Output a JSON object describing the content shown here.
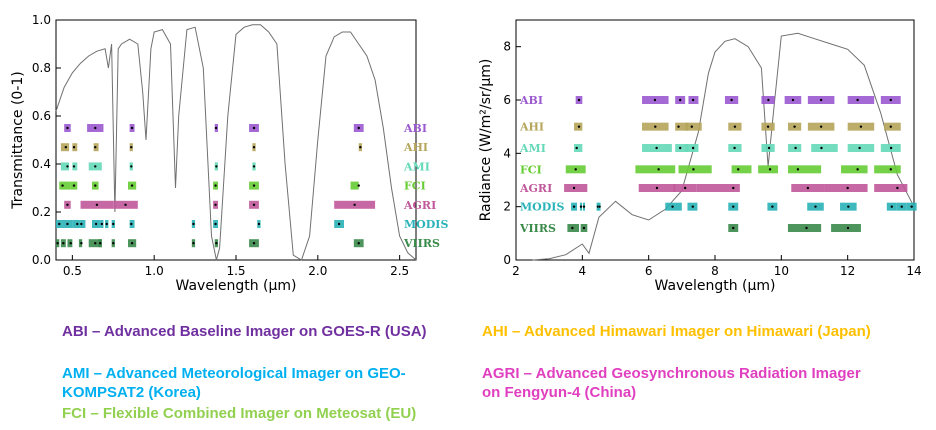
{
  "colors": {
    "ABI": "#9b59d0",
    "AHI": "#b5a55a",
    "AMI": "#66d9b8",
    "FCI": "#66cc33",
    "AGRI": "#c0589a",
    "MODIS": "#29b3b8",
    "VIIRS": "#3a8a4a",
    "curve": "#707070"
  },
  "chart_data": [
    {
      "type": "line",
      "xlabel": "Wavelength (μm)",
      "ylabel": "Transmittance (0-1)",
      "xlim": [
        0.4,
        2.6
      ],
      "ylim": [
        0.0,
        1.0
      ],
      "xticks": [
        "0.5",
        "1.0",
        "1.5",
        "2.0",
        "2.5"
      ],
      "yticks": [
        "0.0",
        "0.2",
        "0.4",
        "0.6",
        "0.8",
        "1.0"
      ],
      "grid": false,
      "curve": {
        "x": [
          0.4,
          0.45,
          0.5,
          0.55,
          0.6,
          0.65,
          0.7,
          0.72,
          0.74,
          0.76,
          0.78,
          0.8,
          0.85,
          0.9,
          0.93,
          0.95,
          0.98,
          1.0,
          1.05,
          1.1,
          1.13,
          1.15,
          1.2,
          1.25,
          1.3,
          1.35,
          1.38,
          1.4,
          1.45,
          1.5,
          1.55,
          1.6,
          1.65,
          1.7,
          1.75,
          1.8,
          1.85,
          1.9,
          1.95,
          2.0,
          2.05,
          2.1,
          2.15,
          2.2,
          2.25,
          2.3,
          2.35,
          2.4,
          2.45,
          2.5,
          2.55,
          2.6
        ],
        "y": [
          0.62,
          0.72,
          0.78,
          0.82,
          0.85,
          0.87,
          0.88,
          0.8,
          0.9,
          0.2,
          0.88,
          0.9,
          0.92,
          0.9,
          0.7,
          0.5,
          0.88,
          0.95,
          0.96,
          0.9,
          0.3,
          0.6,
          0.96,
          0.97,
          0.8,
          0.1,
          0.0,
          0.05,
          0.6,
          0.94,
          0.97,
          0.98,
          0.98,
          0.95,
          0.9,
          0.4,
          0.02,
          0.0,
          0.1,
          0.5,
          0.85,
          0.93,
          0.95,
          0.95,
          0.9,
          0.85,
          0.75,
          0.55,
          0.3,
          0.1,
          0.03,
          0.0
        ]
      },
      "instruments": [
        {
          "name": "ABI",
          "level": 0.55,
          "bands": [
            [
              0.45,
              0.49,
              0.47
            ],
            [
              0.59,
              0.69,
              0.64
            ],
            [
              0.85,
              0.88,
              0.865
            ],
            [
              1.37,
              1.39,
              1.378
            ],
            [
              1.58,
              1.64,
              1.61
            ],
            [
              2.22,
              2.28,
              2.25
            ]
          ]
        },
        {
          "name": "AHI",
          "level": 0.47,
          "bands": [
            [
              0.43,
              0.48,
              0.46
            ],
            [
              0.5,
              0.53,
              0.51
            ],
            [
              0.63,
              0.66,
              0.64
            ],
            [
              0.85,
              0.87,
              0.86
            ],
            [
              1.6,
              1.62,
              1.61
            ],
            [
              2.25,
              2.27,
              2.26
            ]
          ]
        },
        {
          "name": "AMI",
          "level": 0.39,
          "bands": [
            [
              0.43,
              0.48,
              0.47
            ],
            [
              0.5,
              0.53,
              0.51
            ],
            [
              0.6,
              0.68,
              0.64
            ],
            [
              0.85,
              0.87,
              0.86
            ],
            [
              1.37,
              1.39,
              1.38
            ],
            [
              1.6,
              1.62,
              1.61
            ]
          ]
        },
        {
          "name": "FCI",
          "level": 0.31,
          "bands": [
            [
              0.42,
              0.49,
              0.44
            ],
            [
              0.49,
              0.53,
              0.51
            ],
            [
              0.62,
              0.66,
              0.64
            ],
            [
              0.84,
              0.89,
              0.865
            ],
            [
              1.36,
              1.39,
              1.375
            ],
            [
              1.58,
              1.64,
              1.61
            ],
            [
              2.2,
              2.25,
              2.25
            ]
          ]
        },
        {
          "name": "AGRI",
          "level": 0.23,
          "bands": [
            [
              0.45,
              0.49,
              0.47
            ],
            [
              0.55,
              0.75,
              0.65
            ],
            [
              0.75,
              0.9,
              0.825
            ],
            [
              1.36,
              1.39,
              1.375
            ],
            [
              1.58,
              1.64,
              1.61
            ],
            [
              2.1,
              2.35,
              2.225
            ]
          ]
        },
        {
          "name": "MODIS",
          "level": 0.15,
          "bands": [
            [
              0.4,
              0.44,
              0.42
            ],
            [
              0.44,
              0.5,
              0.47
            ],
            [
              0.5,
              0.55,
              0.53
            ],
            [
              0.55,
              0.58,
              0.555
            ],
            [
              0.62,
              0.67,
              0.645
            ],
            [
              0.67,
              0.69,
              0.68
            ],
            [
              0.7,
              0.72,
              0.71
            ],
            [
              0.74,
              0.76,
              0.75
            ],
            [
              0.85,
              0.88,
              0.86
            ],
            [
              1.23,
              1.25,
              1.24
            ],
            [
              1.36,
              1.39,
              1.375
            ],
            [
              1.63,
              1.65,
              1.64
            ],
            [
              2.1,
              2.16,
              2.13
            ]
          ]
        },
        {
          "name": "VIIRS",
          "level": 0.07,
          "bands": [
            [
              0.4,
              0.42,
              0.41
            ],
            [
              0.43,
              0.46,
              0.445
            ],
            [
              0.47,
              0.5,
              0.49
            ],
            [
              0.54,
              0.56,
              0.555
            ],
            [
              0.6,
              0.68,
              0.64
            ],
            [
              0.66,
              0.68,
              0.67
            ],
            [
              0.74,
              0.76,
              0.75
            ],
            [
              0.84,
              0.89,
              0.865
            ],
            [
              1.23,
              1.25,
              1.24
            ],
            [
              1.37,
              1.39,
              1.38
            ],
            [
              1.58,
              1.64,
              1.61
            ],
            [
              2.22,
              2.28,
              2.25
            ]
          ]
        }
      ]
    },
    {
      "type": "line",
      "xlabel": "Wavelength (μm)",
      "ylabel": "Radiance (W/m²/sr/μm)",
      "xlim": [
        2,
        14
      ],
      "ylim": [
        0,
        9
      ],
      "xticks": [
        "2",
        "4",
        "6",
        "8",
        "10",
        "12",
        "14"
      ],
      "yticks": [
        "0",
        "2",
        "4",
        "6",
        "8"
      ],
      "grid": false,
      "curve": {
        "x": [
          2.5,
          3.0,
          3.5,
          4.0,
          4.2,
          4.5,
          5.0,
          5.5,
          6.0,
          6.5,
          7.0,
          7.5,
          7.8,
          8.0,
          8.3,
          8.6,
          9.0,
          9.4,
          9.6,
          9.8,
          10.0,
          10.5,
          11.0,
          11.5,
          12.0,
          12.5,
          13.0,
          13.5,
          14.0
        ],
        "y": [
          0.0,
          0.05,
          0.2,
          0.6,
          0.25,
          1.6,
          2.2,
          1.7,
          1.5,
          1.9,
          2.6,
          4.8,
          7.0,
          7.8,
          8.2,
          8.3,
          8.0,
          7.2,
          3.5,
          6.0,
          8.4,
          8.5,
          8.3,
          8.1,
          7.9,
          7.3,
          5.5,
          3.2,
          2.0
        ]
      },
      "instruments": [
        {
          "name": "ABI",
          "level": 6.0,
          "bands": [
            [
              3.8,
              4.0,
              3.9
            ],
            [
              5.8,
              6.6,
              6.19
            ],
            [
              6.8,
              7.1,
              6.95
            ],
            [
              7.2,
              7.5,
              7.34
            ],
            [
              8.3,
              8.7,
              8.5
            ],
            [
              9.4,
              9.8,
              9.61
            ],
            [
              10.1,
              10.6,
              10.35
            ],
            [
              10.8,
              11.6,
              11.2
            ],
            [
              12.0,
              12.8,
              12.3
            ],
            [
              13.0,
              13.6,
              13.3
            ]
          ]
        },
        {
          "name": "AHI",
          "level": 5.0,
          "bands": [
            [
              3.75,
              4.0,
              3.9
            ],
            [
              5.8,
              6.6,
              6.2
            ],
            [
              6.8,
              7.2,
              6.9
            ],
            [
              7.1,
              7.6,
              7.3
            ],
            [
              8.4,
              8.8,
              8.6
            ],
            [
              9.4,
              9.8,
              9.6
            ],
            [
              10.2,
              10.6,
              10.4
            ],
            [
              10.8,
              11.6,
              11.2
            ],
            [
              12.0,
              12.8,
              12.4
            ],
            [
              13.1,
              13.6,
              13.3
            ]
          ]
        },
        {
          "name": "AMI",
          "level": 4.2,
          "bands": [
            [
              3.75,
              4.0,
              3.83
            ],
            [
              5.8,
              6.7,
              6.24
            ],
            [
              6.8,
              7.2,
              6.95
            ],
            [
              7.1,
              7.5,
              7.34
            ],
            [
              8.4,
              8.8,
              8.59
            ],
            [
              9.4,
              9.8,
              9.63
            ],
            [
              10.2,
              10.6,
              10.43
            ],
            [
              10.9,
              11.7,
              11.21
            ],
            [
              12.0,
              12.8,
              12.36
            ],
            [
              13.0,
              13.6,
              13.31
            ]
          ]
        },
        {
          "name": "FCI",
          "level": 3.4,
          "bands": [
            [
              3.5,
              4.1,
              3.8
            ],
            [
              5.6,
              6.8,
              6.3
            ],
            [
              6.9,
              7.9,
              7.35
            ],
            [
              8.5,
              9.1,
              8.7
            ],
            [
              9.3,
              9.9,
              9.66
            ],
            [
              10.2,
              11.2,
              10.5
            ],
            [
              11.8,
              12.6,
              12.3
            ],
            [
              12.8,
              13.6,
              13.3
            ]
          ]
        },
        {
          "name": "AGRI",
          "level": 2.7,
          "bands": [
            [
              3.45,
              4.15,
              3.75
            ],
            [
              5.7,
              6.8,
              6.25
            ],
            [
              6.75,
              7.45,
              7.1
            ],
            [
              7.45,
              8.75,
              8.55
            ],
            [
              10.3,
              11.3,
              10.8
            ],
            [
              11.3,
              12.6,
              12.0
            ],
            [
              12.8,
              13.8,
              13.5
            ]
          ]
        },
        {
          "name": "MODIS",
          "level": 2.0,
          "bands": [
            [
              3.66,
              3.84,
              3.75
            ],
            [
              3.93,
              3.99,
              3.96
            ],
            [
              4.02,
              4.08,
              4.05
            ],
            [
              4.43,
              4.5,
              4.47
            ],
            [
              4.48,
              4.55,
              4.52
            ],
            [
              6.5,
              7.0,
              6.72
            ],
            [
              7.17,
              7.47,
              7.33
            ],
            [
              8.4,
              8.7,
              8.55
            ],
            [
              9.58,
              9.88,
              9.73
            ],
            [
              10.78,
              11.28,
              11.03
            ],
            [
              11.77,
              12.27,
              12.02
            ],
            [
              13.18,
              13.48,
              13.33
            ],
            [
              13.48,
              13.78,
              13.63
            ],
            [
              13.78,
              14.08,
              13.93
            ]
          ]
        },
        {
          "name": "VIIRS",
          "level": 1.2,
          "bands": [
            [
              3.55,
              3.9,
              3.7
            ],
            [
              3.95,
              4.15,
              4.05
            ],
            [
              8.4,
              8.7,
              8.55
            ],
            [
              10.2,
              11.2,
              10.76
            ],
            [
              11.5,
              12.4,
              12.01
            ]
          ]
        }
      ]
    }
  ],
  "notes": {
    "abi": "ABI – Advanced Baseline Imager on GOES-R (USA)",
    "ami": "AMI – Advanced Meteorological Imager on GEO-KOMPSAT2 (Korea)",
    "fci": "FCI – Flexible Combined Imager on Meteosat (EU)",
    "ahi": "AHI – Advanced Himawari Imager on Himawari (Japan)",
    "agri": "AGRI – Advanced Geosynchronous Radiation Imager on Fengyun-4 (China)"
  }
}
